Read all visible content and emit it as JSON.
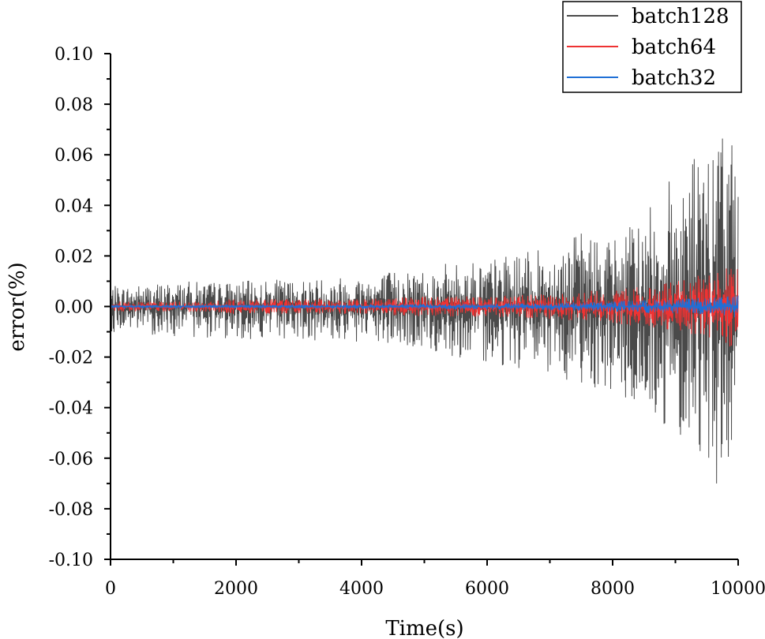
{
  "chart_data": {
    "type": "line",
    "title": "",
    "xlabel": "Time(s)",
    "ylabel": "error(%)",
    "xlim": [
      0,
      10000
    ],
    "ylim": [
      -0.1,
      0.1
    ],
    "x_ticks": [
      0,
      2000,
      4000,
      6000,
      8000,
      10000
    ],
    "y_ticks": [
      -0.1,
      -0.08,
      -0.06,
      -0.04,
      -0.02,
      0.0,
      0.02,
      0.04,
      0.06,
      0.08,
      0.1
    ],
    "x_tick_labels": [
      "0",
      "2000",
      "4000",
      "6000",
      "8000",
      "10000"
    ],
    "y_tick_labels": [
      "-0.10",
      "-0.08",
      "-0.06",
      "-0.04",
      "-0.02",
      "0.00",
      "0.02",
      "0.04",
      "0.06",
      "0.08",
      "0.10"
    ],
    "grid": false,
    "legend_position": "top-right",
    "series": [
      {
        "name": "batch128",
        "color": "#4a4a4a",
        "x": [
          0,
          1000,
          2000,
          3000,
          4000,
          5000,
          6000,
          7000,
          7500,
          8000,
          8500,
          9000,
          9300,
          9600,
          9700,
          9800,
          9900,
          10000
        ],
        "envelope_upper": [
          0.008,
          0.01,
          0.01,
          0.011,
          0.013,
          0.016,
          0.019,
          0.023,
          0.03,
          0.028,
          0.036,
          0.055,
          0.065,
          0.058,
          0.081,
          0.08,
          0.078,
          0.053
        ],
        "envelope_lower": [
          -0.01,
          -0.012,
          -0.013,
          -0.013,
          -0.015,
          -0.018,
          -0.022,
          -0.028,
          -0.03,
          -0.035,
          -0.045,
          -0.05,
          -0.055,
          -0.065,
          -0.079,
          -0.07,
          -0.068,
          -0.06
        ]
      },
      {
        "name": "batch64",
        "color": "#ee3333",
        "x": [
          0,
          1000,
          2000,
          3000,
          4000,
          5000,
          6000,
          7000,
          7500,
          8000,
          8500,
          9000,
          9300,
          9600,
          9700,
          9800,
          9900,
          10000
        ],
        "envelope_upper": [
          0.002,
          0.002,
          0.003,
          0.003,
          0.003,
          0.004,
          0.004,
          0.005,
          0.006,
          0.007,
          0.008,
          0.01,
          0.012,
          0.013,
          0.014,
          0.015,
          0.016,
          0.017
        ],
        "envelope_lower": [
          -0.002,
          -0.002,
          -0.003,
          -0.003,
          -0.003,
          -0.004,
          -0.004,
          -0.005,
          -0.006,
          -0.007,
          -0.008,
          -0.01,
          -0.012,
          -0.013,
          -0.014,
          -0.016,
          -0.018,
          -0.02
        ]
      },
      {
        "name": "batch32",
        "color": "#1f6fd6",
        "x": [
          0,
          1000,
          2000,
          3000,
          4000,
          5000,
          6000,
          7000,
          7500,
          8000,
          8500,
          9000,
          9300,
          9600,
          9700,
          9800,
          9900,
          10000
        ],
        "envelope_upper": [
          0.0005,
          0.0006,
          0.0007,
          0.0008,
          0.0009,
          0.001,
          0.0012,
          0.0015,
          0.0018,
          0.0022,
          0.0026,
          0.003,
          0.0033,
          0.0036,
          0.0038,
          0.004,
          0.0042,
          0.0045
        ],
        "envelope_lower": [
          -0.0005,
          -0.0006,
          -0.0007,
          -0.0008,
          -0.0009,
          -0.001,
          -0.0012,
          -0.0015,
          -0.0018,
          -0.0022,
          -0.0026,
          -0.003,
          -0.0033,
          -0.0036,
          -0.0038,
          -0.004,
          -0.0042,
          -0.0045
        ]
      }
    ]
  }
}
